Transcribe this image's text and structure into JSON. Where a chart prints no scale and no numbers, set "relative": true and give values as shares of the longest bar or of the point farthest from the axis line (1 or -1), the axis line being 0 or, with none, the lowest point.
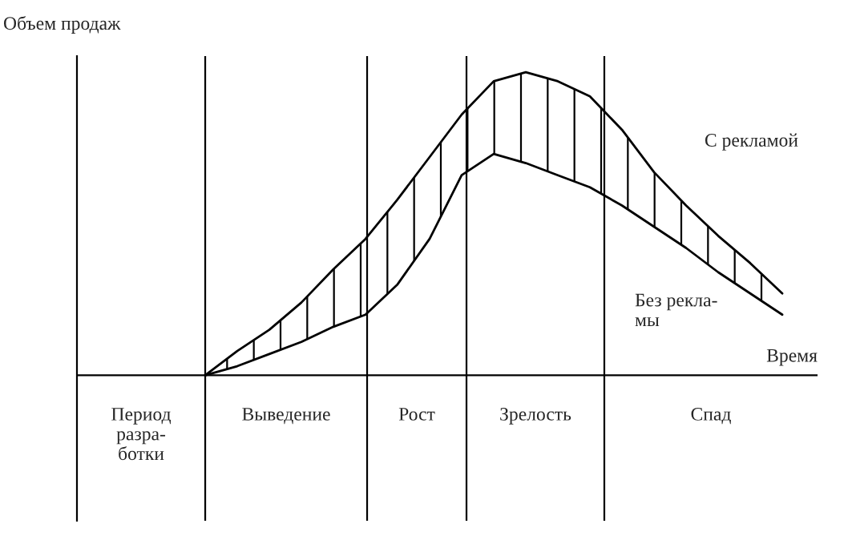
{
  "chart_data": {
    "type": "line",
    "relative": true,
    "ylabel": "Объем продаж",
    "xlabel": "Время",
    "categories": [
      null,
      null,
      null,
      null,
      null,
      null,
      null,
      null,
      null,
      null,
      null,
      null,
      null,
      null,
      null,
      null,
      null,
      null,
      null,
      null,
      null,
      null,
      null
    ],
    "series": [
      {
        "name": "С рекламой",
        "color": "#000000",
        "values": [
          null,
          null,
          null,
          null,
          0,
          0.08,
          0.15,
          0.24,
          0.35,
          0.45,
          0.58,
          0.72,
          0.86,
          0.97,
          1,
          0.97,
          0.92,
          0.81,
          0.67,
          0.56,
          0.46,
          0.37,
          0.27
        ],
        "lower": [
          null,
          null,
          null,
          null,
          0,
          0.03,
          0.07,
          0.11,
          0.16,
          0.2,
          0.3,
          0.45,
          0.66,
          0.73,
          0.7,
          0.66,
          0.62,
          0.56,
          0.49,
          0.42,
          0.34,
          0.27,
          0.2
        ],
        "upper": [
          null,
          null,
          null,
          null,
          0,
          0.08,
          0.15,
          0.24,
          0.35,
          0.45,
          0.58,
          0.72,
          0.86,
          0.97,
          1,
          0.97,
          0.92,
          0.81,
          0.67,
          0.56,
          0.46,
          0.37,
          0.27
        ]
      },
      {
        "name": "Без рекла-\nмы",
        "color": "#000000",
        "values": [
          null,
          null,
          null,
          null,
          0,
          0.03,
          0.07,
          0.11,
          0.16,
          0.2,
          0.3,
          0.45,
          0.66,
          0.73,
          0.7,
          0.66,
          0.62,
          0.56,
          0.49,
          0.42,
          0.34,
          0.27,
          0.2
        ]
      }
    ],
    "annotations": [
      "Период\nразра-\nботки",
      "Выведение",
      "Рост",
      "Зрелость",
      "Спад"
    ]
  }
}
